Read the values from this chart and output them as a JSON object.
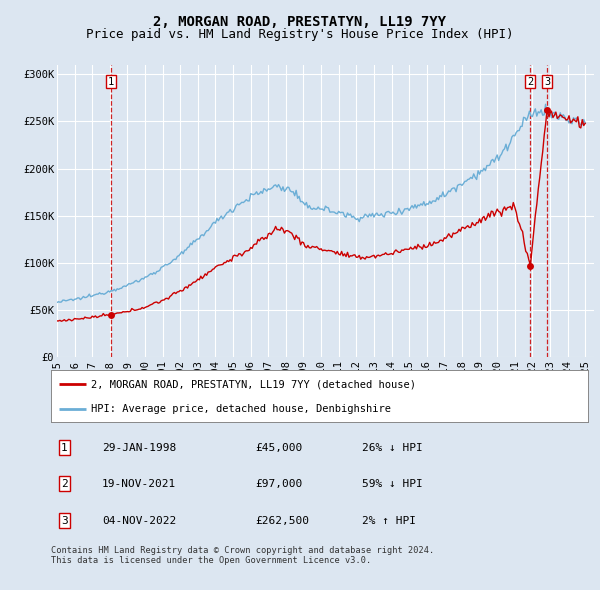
{
  "title": "2, MORGAN ROAD, PRESTATYN, LL19 7YY",
  "subtitle": "Price paid vs. HM Land Registry's House Price Index (HPI)",
  "xlim_start": 1995.0,
  "xlim_end": 2025.5,
  "ylim_min": 0,
  "ylim_max": 310000,
  "yticks": [
    0,
    50000,
    100000,
    150000,
    200000,
    250000,
    300000
  ],
  "ytick_labels": [
    "£0",
    "£50K",
    "£100K",
    "£150K",
    "£200K",
    "£250K",
    "£300K"
  ],
  "background_color": "#dce6f1",
  "plot_bg_color": "#dce6f1",
  "grid_color": "#ffffff",
  "hpi_color": "#6baed6",
  "price_color": "#cc0000",
  "transaction1_x": 1998.08,
  "transaction1_y": 45000,
  "transaction2_x": 2021.89,
  "transaction2_y": 97000,
  "transaction3_x": 2022.84,
  "transaction3_y": 262500,
  "legend_label_price": "2, MORGAN ROAD, PRESTATYN, LL19 7YY (detached house)",
  "legend_label_hpi": "HPI: Average price, detached house, Denbighshire",
  "table_rows": [
    {
      "num": "1",
      "date": "29-JAN-1998",
      "price": "£45,000",
      "hpi": "26% ↓ HPI"
    },
    {
      "num": "2",
      "date": "19-NOV-2021",
      "price": "£97,000",
      "hpi": "59% ↓ HPI"
    },
    {
      "num": "3",
      "date": "04-NOV-2022",
      "price": "£262,500",
      "hpi": "2% ↑ HPI"
    }
  ],
  "footer": "Contains HM Land Registry data © Crown copyright and database right 2024.\nThis data is licensed under the Open Government Licence v3.0.",
  "title_fontsize": 10,
  "subtitle_fontsize": 9,
  "tick_fontsize": 7.5,
  "xticks": [
    1995,
    1996,
    1997,
    1998,
    1999,
    2000,
    2001,
    2002,
    2003,
    2004,
    2005,
    2006,
    2007,
    2008,
    2009,
    2010,
    2011,
    2012,
    2013,
    2014,
    2015,
    2016,
    2017,
    2018,
    2019,
    2020,
    2021,
    2022,
    2023,
    2024,
    2025
  ]
}
